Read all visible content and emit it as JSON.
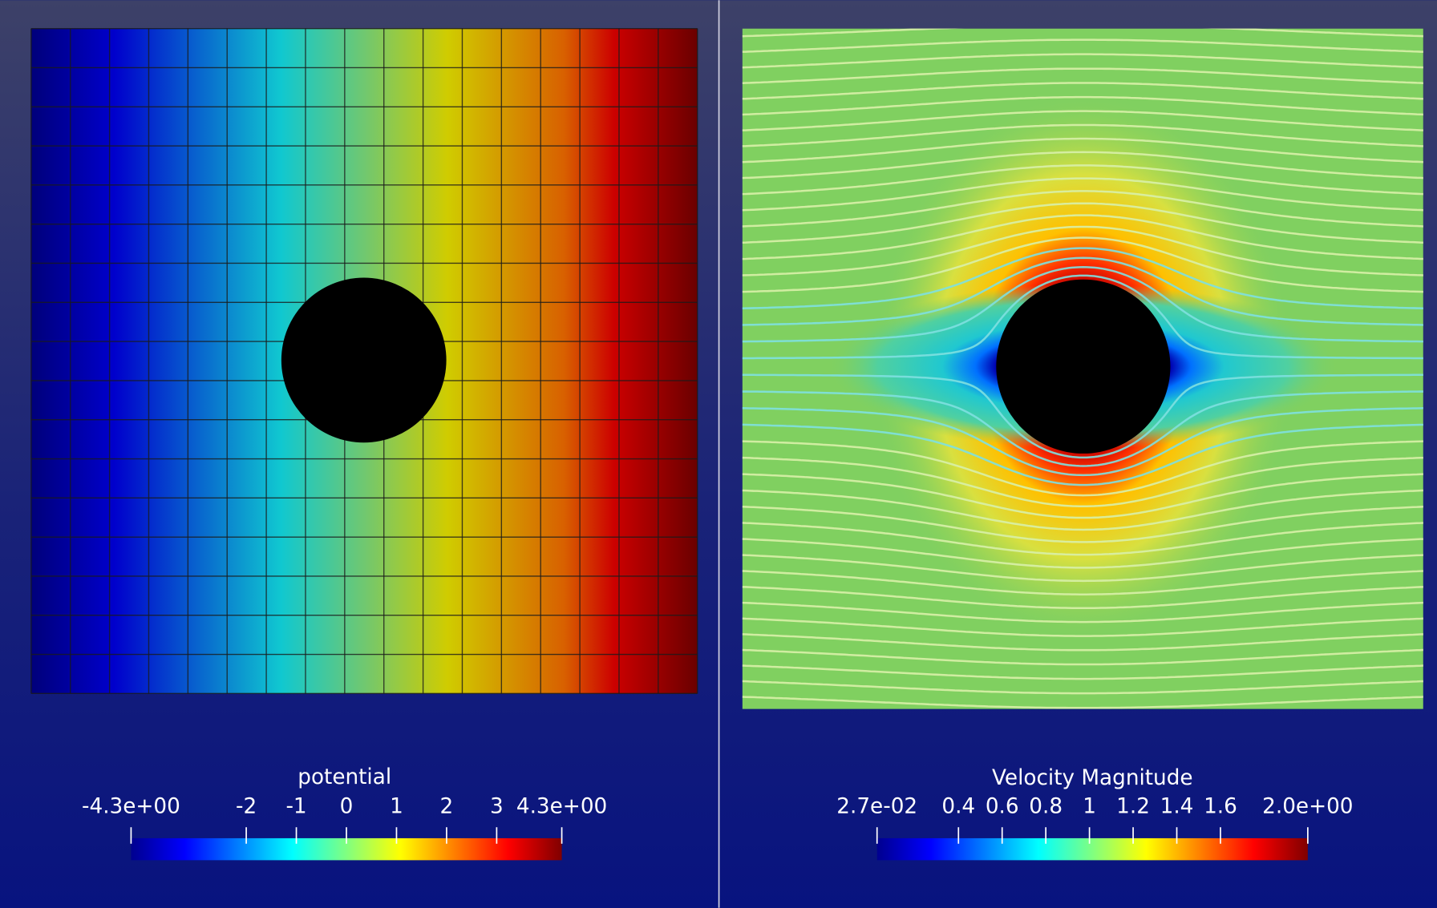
{
  "panels": [
    {
      "legend": {
        "title": "potential",
        "range": [
          -4.3,
          4.3
        ],
        "ticks": [
          {
            "value": -4.3,
            "label": "-4.3e+00"
          },
          -2,
          -1,
          0,
          1,
          2,
          3,
          {
            "value": 4.3,
            "label": "4.3e+00"
          }
        ]
      }
    },
    {
      "legend": {
        "title": "Velocity Magnitude",
        "range": [
          0.027,
          2.0
        ],
        "ticks": [
          {
            "value": 0.027,
            "label": "2.7e-02"
          },
          0.4,
          0.6,
          0.8,
          1,
          1.2,
          1.4,
          1.6,
          {
            "value": 2.0,
            "label": "2.0e+00"
          }
        ]
      }
    }
  ]
}
